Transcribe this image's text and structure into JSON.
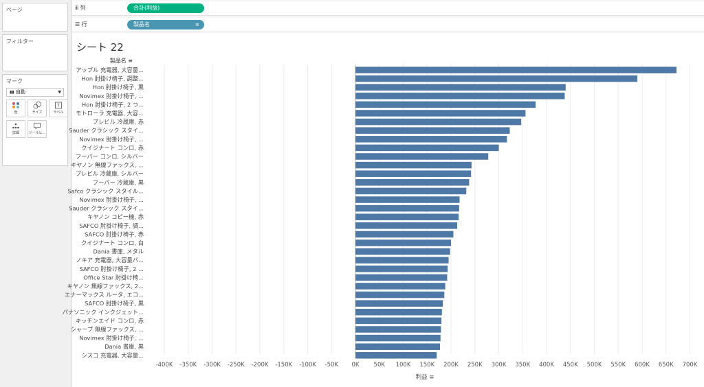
{
  "left": {
    "pages_title": "ページ",
    "filters_title": "フィルター",
    "marks": {
      "title": "マーク",
      "type": "自動",
      "buttons": [
        "色",
        "サイズ",
        "ラベル",
        "詳細",
        "ツールヒ…"
      ]
    }
  },
  "shelves": {
    "columns": {
      "label": "列",
      "pill": "合計(利益)"
    },
    "rows": {
      "label": "行",
      "pill": "製品名"
    }
  },
  "sheet": {
    "title": "シート 22"
  },
  "chart_data": {
    "type": "bar",
    "orientation": "horizontal",
    "row_header": "製品名",
    "xlabel": "利益",
    "xlim": [
      -430000,
      730000
    ],
    "xticks": [
      -400000,
      -350000,
      -300000,
      -250000,
      -200000,
      -150000,
      -100000,
      -50000,
      0,
      50000,
      100000,
      150000,
      200000,
      250000,
      300000,
      350000,
      400000,
      450000,
      500000,
      550000,
      600000,
      650000,
      700000
    ],
    "xtick_labels": [
      "-400K",
      "-350K",
      "-300K",
      "-250K",
      "-200K",
      "-150K",
      "-100K",
      "-50K",
      "0K",
      "50K",
      "100K",
      "150K",
      "200K",
      "250K",
      "300K",
      "350K",
      "400K",
      "450K",
      "500K",
      "550K",
      "600K",
      "650K",
      "700K"
    ],
    "grid": true,
    "bar_color": "#4e79a7",
    "categories": [
      "アップル 充電器, 大容量...",
      "Hon 肘掛け椅子, 調整...",
      "Hon 肘掛け椅子, 黒",
      "Novimex 肘掛け椅子, ...",
      "Hon 肘掛け椅子, 2 つ...",
      "モトローラ 充電器, 大容...",
      "ブレビル 冷蔵庫, 赤",
      "Sauder クラシック スタイ...",
      "Novimex 肘掛け椅子, ...",
      "クイジナート コンロ, 赤",
      "フーバー コンロ, シルバー",
      "キヤノン 無線ファックス, ...",
      "ブレビル 冷蔵庫, シルバー",
      "フーバー 冷蔵庫, 黒",
      "Safco クラシック スタイル...",
      "Novimex 肘掛け椅子, ...",
      "Sauder クラシック スタイ...",
      "キヤノン コピー機, 赤",
      "SAFCO 肘掛け椅子, 調...",
      "SAFCO 肘掛け椅子, 赤",
      "クイジナート コンロ, 白",
      "Dania 書庫, メタル",
      "ノキア 充電器, 大容量バ...",
      "SAFCO 肘掛け椅子, 2 ...",
      "Office Star 肘掛け椅...",
      "キヤノン 無線ファックス, 2...",
      "エナーマックス ルータ, エコ...",
      "SAFCO 肘掛け椅子, 黒",
      "パナソニック インクジェット...",
      "キッチンエイド コンロ, 赤",
      "シャープ 無線ファックス, ...",
      "Novimex 肘掛け椅子, ...",
      "Dania 書庫, 黒",
      "シスコ 充電器, 大容量..."
    ],
    "values": [
      672000,
      590000,
      440000,
      438000,
      377000,
      356000,
      347000,
      323000,
      317000,
      300000,
      278000,
      243000,
      242000,
      238000,
      232000,
      218000,
      217000,
      216000,
      213000,
      205000,
      200000,
      198000,
      195000,
      193000,
      192000,
      188000,
      186000,
      183000,
      181000,
      180000,
      179000,
      178000,
      177000,
      170000
    ]
  }
}
